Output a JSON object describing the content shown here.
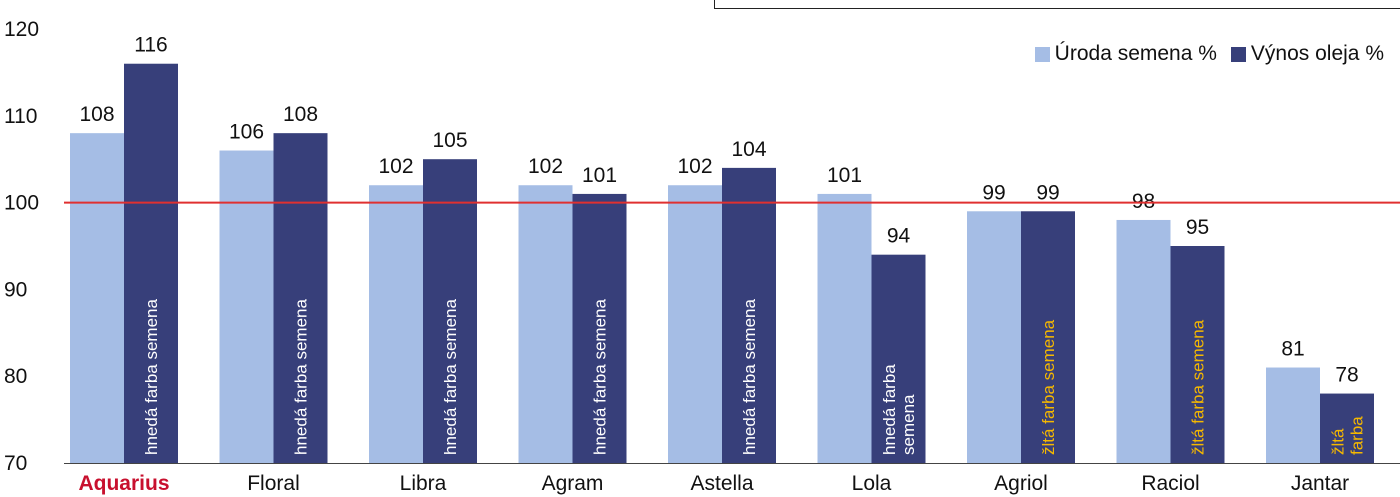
{
  "chart_data": {
    "type": "bar",
    "categories": [
      "Aquarius",
      "Floral",
      "Libra",
      "Agram",
      "Astella",
      "Lola",
      "Agriol",
      "Raciol",
      "Jantar"
    ],
    "highlight_category": "Aquarius",
    "series": [
      {
        "name": "Úroda semena %",
        "color": "#a5bde5",
        "values": [
          108,
          106,
          102,
          102,
          102,
          101,
          99,
          98,
          81
        ]
      },
      {
        "name": "Výnos oleja %",
        "color": "#373f7a",
        "values": [
          116,
          108,
          105,
          101,
          104,
          94,
          99,
          95,
          78
        ]
      }
    ],
    "bar_notes": [
      {
        "lines": [
          "hnedá farba semena"
        ],
        "color": "#ffffff"
      },
      {
        "lines": [
          "hnedá farba semena"
        ],
        "color": "#ffffff"
      },
      {
        "lines": [
          "hnedá farba semena"
        ],
        "color": "#ffffff"
      },
      {
        "lines": [
          "hnedá farba semena"
        ],
        "color": "#ffffff"
      },
      {
        "lines": [
          "hnedá farba semena"
        ],
        "color": "#ffffff"
      },
      {
        "lines": [
          "hnedá farba",
          "semena"
        ],
        "color": "#ffffff"
      },
      {
        "lines": [
          "žltá farba semena"
        ],
        "color": "#f5b800"
      },
      {
        "lines": [
          "žltá farba semena"
        ],
        "color": "#f5b800"
      },
      {
        "lines": [
          "žltá",
          "farba"
        ],
        "color": "#f5b800"
      }
    ],
    "yticks": [
      70,
      80,
      90,
      100,
      110,
      120
    ],
    "ylim": [
      70,
      120
    ],
    "reference_line": {
      "value": 100,
      "color": "#e03030"
    },
    "highlight_color": "#c8102e",
    "grid": false,
    "legend_position": "top-right",
    "title": "",
    "xlabel": "",
    "ylabel": ""
  }
}
